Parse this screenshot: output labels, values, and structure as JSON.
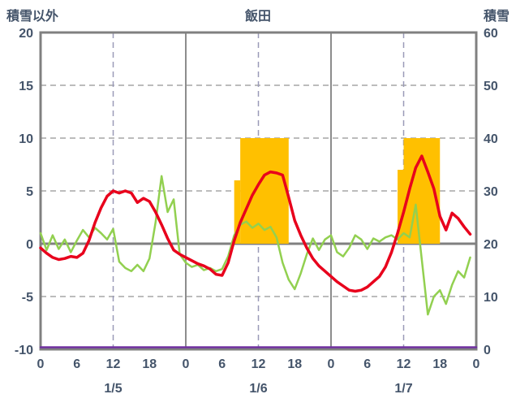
{
  "chart_data": {
    "type": "line",
    "title": "飯田",
    "left_axis_title": "積雪以外",
    "right_axis_title": "積雪",
    "left_axis": {
      "max": 20,
      "min": -10,
      "ticks": [
        20,
        15,
        10,
        5,
        0,
        -5,
        -10
      ]
    },
    "right_axis": {
      "max": 60,
      "min": 0,
      "ticks": [
        60,
        50,
        40,
        30,
        20,
        10,
        0
      ]
    },
    "x_total_hours": 72,
    "x_tick_step": 6,
    "x_tick_labels": [
      "0",
      "6",
      "12",
      "18",
      "0",
      "6",
      "12",
      "18",
      "0",
      "6",
      "12",
      "18",
      "0"
    ],
    "day_labels": [
      "1/5",
      "1/6",
      "1/7"
    ],
    "v_gridlines": {
      "solid_hours": [
        24,
        48
      ],
      "dashed_hours": [
        12,
        36,
        60
      ]
    },
    "bars": {
      "name": "sunshine-bars",
      "color": "#FFC000",
      "axis": "left",
      "segments": [
        {
          "from": 32,
          "to": 33,
          "value": 6
        },
        {
          "from": 33,
          "to": 41,
          "value": 10
        },
        {
          "from": 59,
          "to": 60,
          "value": 7
        },
        {
          "from": 60,
          "to": 66,
          "value": 10
        }
      ]
    },
    "series": [
      {
        "name": "green-line",
        "color": "#92D050",
        "width": 2.5,
        "axis": "left",
        "values": [
          1.0,
          -0.6,
          0.8,
          -0.5,
          0.4,
          -0.8,
          0.3,
          1.3,
          0.6,
          1.5,
          1.0,
          0.4,
          1.4,
          -1.7,
          -2.3,
          -2.6,
          -2.0,
          -2.6,
          -1.4,
          2.0,
          6.4,
          3.0,
          4.2,
          -1.0,
          -1.8,
          -2.2,
          -2.0,
          -2.5,
          -2.3,
          -2.6,
          -2.4,
          -1.2,
          0.8,
          1.8,
          2.1,
          1.5,
          1.9,
          1.3,
          1.6,
          0.6,
          -1.8,
          -3.4,
          -4.3,
          -2.8,
          -1.0,
          0.5,
          -0.6,
          0.4,
          0.8,
          -0.8,
          -1.2,
          -0.4,
          0.8,
          0.4,
          -0.5,
          0.5,
          0.2,
          0.6,
          0.8,
          0.4,
          1.0,
          0.6,
          3.7,
          -1.5,
          -6.7,
          -5.0,
          -4.4,
          -5.7,
          -3.9,
          -2.6,
          -3.2,
          -1.3
        ]
      },
      {
        "name": "red-temperature-line",
        "color": "#E8001C",
        "width": 3.5,
        "axis": "left",
        "values": [
          -0.4,
          -0.9,
          -1.3,
          -1.5,
          -1.4,
          -1.2,
          -1.3,
          -0.9,
          0.3,
          2.0,
          3.4,
          4.5,
          5.0,
          4.8,
          5.0,
          4.8,
          3.9,
          4.3,
          4.0,
          3.0,
          1.8,
          0.5,
          -0.6,
          -1.0,
          -1.3,
          -1.6,
          -1.9,
          -2.1,
          -2.4,
          -2.9,
          -3.0,
          -1.8,
          0.3,
          2.0,
          3.3,
          4.6,
          5.6,
          6.5,
          6.8,
          6.7,
          6.5,
          4.4,
          2.2,
          0.8,
          -0.4,
          -1.4,
          -2.1,
          -2.6,
          -3.1,
          -3.6,
          -4.0,
          -4.4,
          -4.5,
          -4.4,
          -4.1,
          -3.6,
          -3.1,
          -2.2,
          -0.8,
          1.0,
          3.0,
          5.2,
          7.2,
          8.3,
          6.8,
          5.2,
          2.6,
          1.3,
          2.9,
          2.4,
          1.6,
          0.9
        ]
      },
      {
        "name": "purple-snow-depth-line",
        "color": "#7030A0",
        "width": 2.5,
        "axis": "right",
        "const_value": 0
      }
    ],
    "colors": {
      "border": "#808080",
      "grid": "#A6A6A6",
      "dashed_vertical": "#9A9AB8",
      "zero_line": "#808080",
      "text": "#44546A",
      "background": "#FFFFFF"
    }
  }
}
